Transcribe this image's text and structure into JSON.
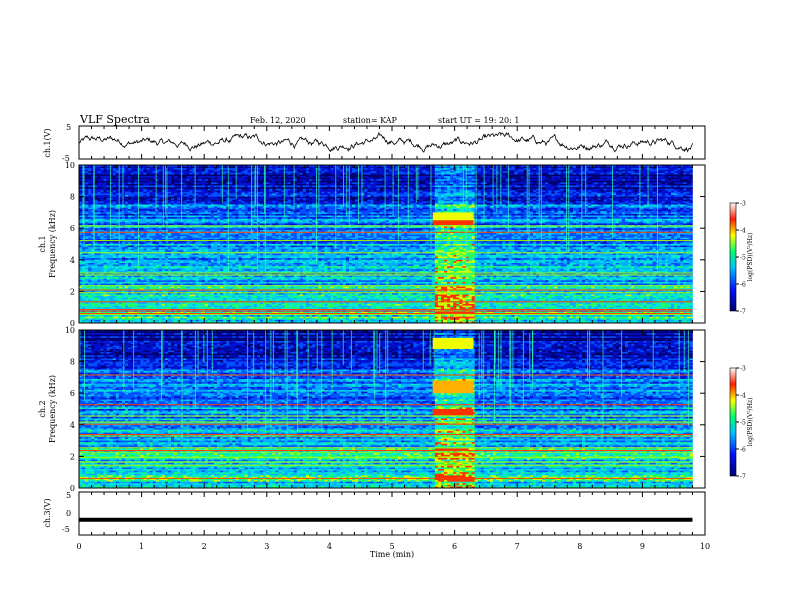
{
  "header": {
    "title": "VLF Spectra",
    "date": "Feb. 12, 2020",
    "station": "station= KAP",
    "start": "start  UT  =   19: 20: 1"
  },
  "chart_data": [
    {
      "type": "line",
      "panel": "ch1-waveform",
      "ylabel": "ch.1(V)",
      "ylim": [
        -5,
        5
      ],
      "yticks": [
        "5",
        "-5"
      ],
      "xlim": [
        0,
        10
      ],
      "note_values": "waveform fluctuating roughly between -3 and 3 V over 0-9.8 min",
      "approx_envelope": [
        [
          0,
          -1.5,
          1.5
        ],
        [
          2,
          -2,
          2.5
        ],
        [
          4,
          -2,
          2
        ],
        [
          6,
          -1.5,
          2
        ],
        [
          8,
          -2,
          2.5
        ],
        [
          9.8,
          -2,
          1
        ]
      ]
    },
    {
      "type": "heatmap",
      "panel": "ch1-spectrogram",
      "ylabel": "ch.1\nFrequency (kHz)",
      "ylabel_line1": "ch.1",
      "ylabel_line2": "Frequency  (kHz)",
      "ylim": [
        0,
        10
      ],
      "yticks": [
        "0",
        "2",
        "4",
        "6",
        "8",
        "10"
      ],
      "xlim": [
        0,
        10
      ],
      "colorbar": {
        "label": "log(PSD)(V²/Hz)",
        "range": [
          -7,
          -3
        ],
        "ticks": [
          "-3",
          "-4",
          "-5",
          "-6",
          "-7"
        ]
      }
    },
    {
      "type": "heatmap",
      "panel": "ch2-spectrogram",
      "ylabel_line1": "ch.2",
      "ylabel_line2": "Frequency  (kHz)",
      "ylim": [
        0,
        10
      ],
      "yticks": [
        "0",
        "2",
        "4",
        "6",
        "8",
        "10"
      ],
      "xlim": [
        0,
        10
      ],
      "colorbar": {
        "label": "log(PSD)(V²/Hz)",
        "range": [
          -7,
          -3
        ],
        "ticks": [
          "-3",
          "-4",
          "-5",
          "-6",
          "-7"
        ]
      }
    },
    {
      "type": "line",
      "panel": "ch3-waveform",
      "ylabel": "ch.3(V)",
      "ylim": [
        -5,
        5
      ],
      "yticks": [
        "5",
        "0",
        "-5"
      ],
      "xlim": [
        0,
        10
      ],
      "values_note": "flat line near -1.5 V",
      "level": -1.5
    }
  ],
  "xaxis": {
    "label": "Time  (min)",
    "ticks": [
      "0",
      "1",
      "2",
      "3",
      "4",
      "5",
      "6",
      "7",
      "8",
      "9",
      "10"
    ]
  },
  "colors": {
    "deep": "#000080",
    "blue": "#0030ff",
    "cyan": "#00c8ff",
    "green": "#00ff60",
    "yellow": "#f0ff00",
    "red": "#ff2000"
  }
}
